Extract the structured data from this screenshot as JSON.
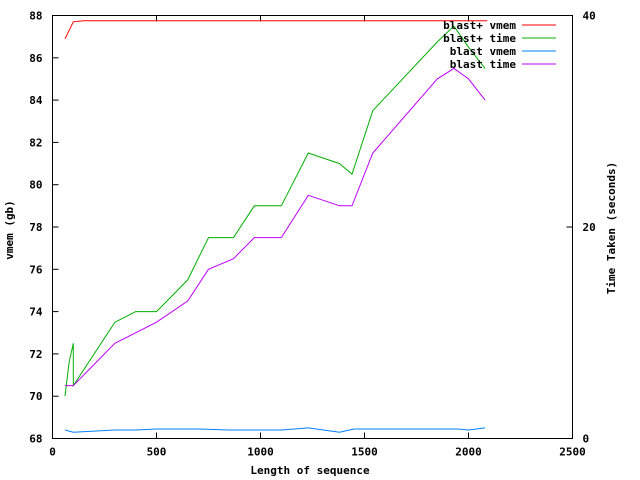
{
  "chart_data": {
    "type": "line",
    "title": "",
    "xlabel": "Length of sequence",
    "ylabel": "vmem (gb)",
    "y2label": "Time Taken (seconds)",
    "xlim": [
      0,
      2500
    ],
    "ylim": [
      68,
      88
    ],
    "y2lim": [
      0,
      40
    ],
    "x_ticks": [
      "0",
      "500",
      "1000",
      "1500",
      "2000",
      "2500"
    ],
    "y_ticks": [
      "68",
      "70",
      "72",
      "74",
      "76",
      "78",
      "80",
      "82",
      "84",
      "86",
      "88"
    ],
    "y2_ticks": [
      "0",
      "20",
      "40"
    ],
    "grid": false,
    "legend_position": "top-right",
    "series": [
      {
        "name": "blast+ vmem",
        "axis": "y",
        "color": "#ff0000",
        "points": [
          [
            60,
            86.9
          ],
          [
            100,
            87.7
          ],
          [
            150,
            87.75
          ],
          [
            300,
            87.75
          ],
          [
            500,
            87.75
          ],
          [
            750,
            87.75
          ],
          [
            1000,
            87.75
          ],
          [
            1250,
            87.75
          ],
          [
            1500,
            87.75
          ],
          [
            1750,
            87.75
          ],
          [
            2000,
            87.75
          ],
          [
            2090,
            87.75
          ]
        ]
      },
      {
        "name": "blast+ time",
        "axis": "y2",
        "color": "#00b000",
        "points": [
          [
            60,
            4
          ],
          [
            80,
            7.2
          ],
          [
            100,
            9
          ],
          [
            100,
            5
          ],
          [
            300,
            11
          ],
          [
            400,
            12
          ],
          [
            500,
            12
          ],
          [
            650,
            15
          ],
          [
            750,
            19
          ],
          [
            870,
            19
          ],
          [
            970,
            22
          ],
          [
            1100,
            22
          ],
          [
            1230,
            27
          ],
          [
            1380,
            26
          ],
          [
            1440,
            25
          ],
          [
            1540,
            31
          ],
          [
            1850,
            37.5
          ],
          [
            1930,
            39
          ],
          [
            2000,
            37
          ],
          [
            2080,
            35
          ]
        ]
      },
      {
        "name": "blast vmem",
        "axis": "y",
        "color": "#0080ff",
        "points": [
          [
            60,
            68.4
          ],
          [
            100,
            68.3
          ],
          [
            200,
            68.35
          ],
          [
            300,
            68.4
          ],
          [
            400,
            68.4
          ],
          [
            500,
            68.45
          ],
          [
            700,
            68.45
          ],
          [
            850,
            68.4
          ],
          [
            1000,
            68.4
          ],
          [
            1100,
            68.4
          ],
          [
            1230,
            68.5
          ],
          [
            1380,
            68.3
          ],
          [
            1450,
            68.45
          ],
          [
            1600,
            68.45
          ],
          [
            1800,
            68.45
          ],
          [
            1950,
            68.45
          ],
          [
            2000,
            68.4
          ],
          [
            2080,
            68.5
          ]
        ]
      },
      {
        "name": "blast time",
        "axis": "y2",
        "color": "#c000ff",
        "points": [
          [
            60,
            5
          ],
          [
            100,
            5
          ],
          [
            300,
            9
          ],
          [
            500,
            11
          ],
          [
            650,
            13
          ],
          [
            750,
            16
          ],
          [
            870,
            17
          ],
          [
            970,
            19
          ],
          [
            1100,
            19
          ],
          [
            1230,
            23
          ],
          [
            1380,
            22
          ],
          [
            1440,
            22
          ],
          [
            1540,
            27
          ],
          [
            1850,
            34
          ],
          [
            1930,
            35
          ],
          [
            2000,
            34
          ],
          [
            2080,
            32
          ]
        ]
      }
    ]
  }
}
